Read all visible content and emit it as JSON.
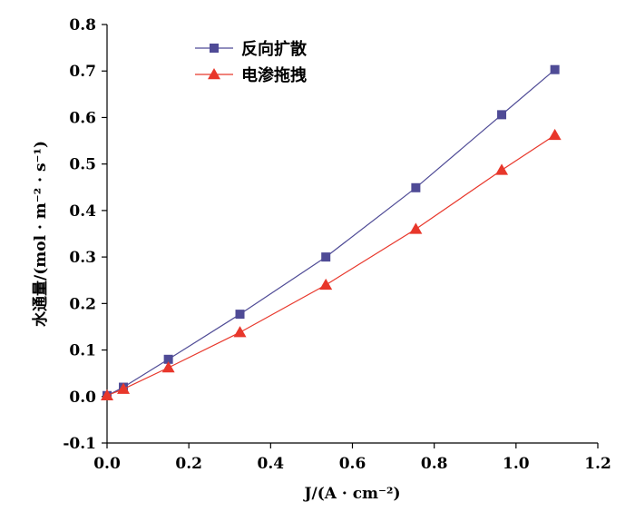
{
  "chart_data": {
    "type": "line",
    "xlabel": "J/(A · cm⁻²)",
    "ylabel": "水通量/(mol · m⁻² · s⁻¹)",
    "xlim": [
      0.0,
      1.2
    ],
    "ylim": [
      -0.1,
      0.8
    ],
    "xticks": [
      "0.0",
      "0.2",
      "0.4",
      "0.6",
      "0.8",
      "1.0",
      "1.2"
    ],
    "yticks": [
      "-0.1",
      "0.0",
      "0.1",
      "0.2",
      "0.3",
      "0.4",
      "0.5",
      "0.6",
      "0.7",
      "0.8"
    ],
    "grid": false,
    "legend": "top-left",
    "series": [
      {
        "name": "反向扩散",
        "marker": "square",
        "color": "#4f4b96",
        "x": [
          0.0,
          0.04,
          0.15,
          0.325,
          0.535,
          0.755,
          0.965,
          1.095
        ],
        "y": [
          0.002,
          0.02,
          0.08,
          0.177,
          0.3,
          0.449,
          0.606,
          0.703
        ]
      },
      {
        "name": "电渗拖拽",
        "marker": "triangle",
        "color": "#e8372b",
        "x": [
          0.0,
          0.04,
          0.15,
          0.325,
          0.535,
          0.755,
          0.965,
          1.095
        ],
        "y": [
          0.002,
          0.016,
          0.062,
          0.138,
          0.24,
          0.36,
          0.487,
          0.562
        ]
      }
    ]
  }
}
